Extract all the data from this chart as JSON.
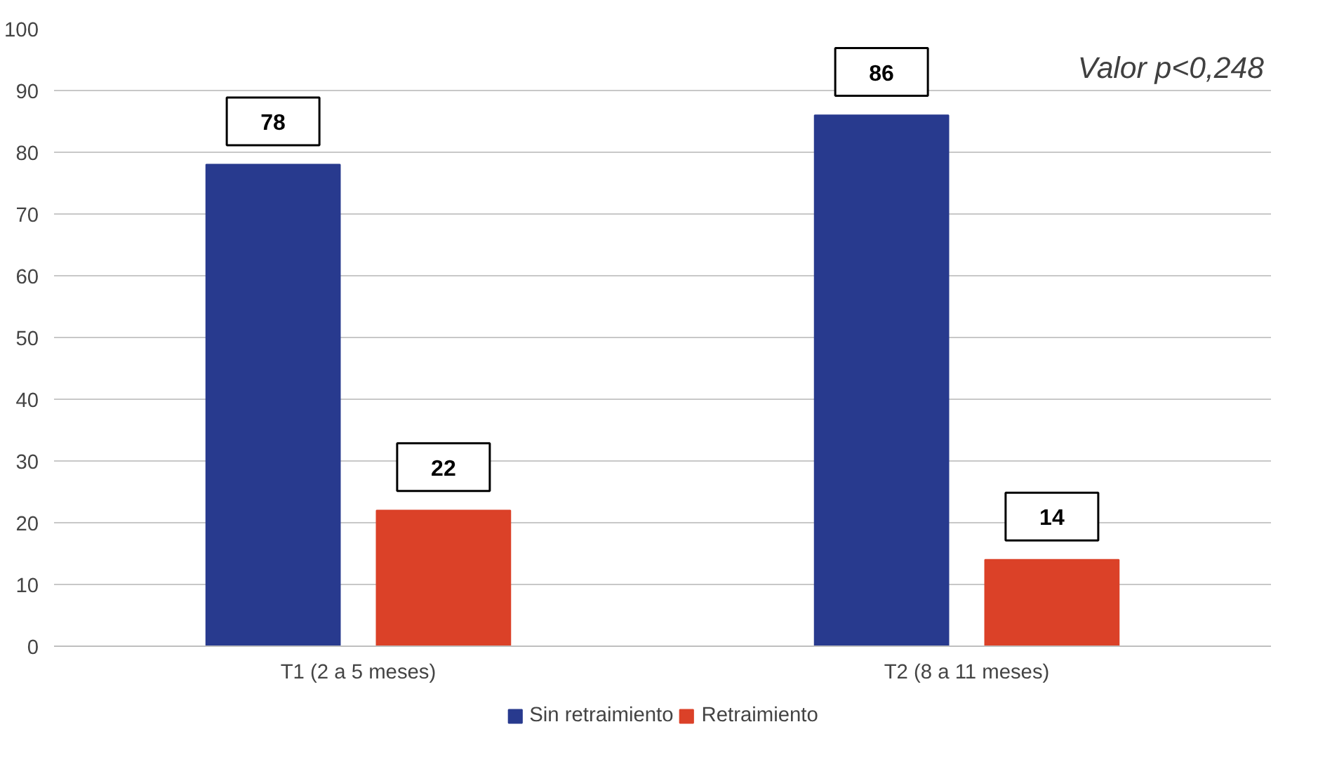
{
  "chart_data": {
    "type": "bar",
    "categories": [
      "T1 (2 a 5 meses)",
      "T2 (8 a 11 meses)"
    ],
    "series": [
      {
        "name": "Sin retraimiento",
        "color": "#283a8e",
        "values": [
          78,
          86
        ]
      },
      {
        "name": "Retraimiento",
        "color": "#db4128",
        "values": [
          22,
          14
        ]
      }
    ],
    "ylim": [
      0,
      100
    ],
    "yticks": [
      0,
      10,
      20,
      30,
      40,
      50,
      60,
      70,
      80,
      90,
      100
    ],
    "grid": "y",
    "legend": "bottom",
    "data_labels": true,
    "annotations": [
      "Valor p<0,248"
    ]
  }
}
